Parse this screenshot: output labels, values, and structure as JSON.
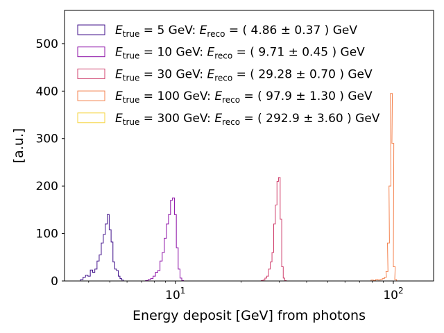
{
  "chart_data": {
    "type": "histogram-step",
    "xlabel": "Energy deposit [GeV] from photons",
    "ylabel": "[a.u.]",
    "x_scale": "log",
    "xlim": [
      3.1,
      153
    ],
    "ylim": [
      0,
      570
    ],
    "y_ticks": [
      0,
      100,
      200,
      300,
      400,
      500
    ],
    "x_ticks": [
      {
        "value": 10,
        "base": "10",
        "exp": "1"
      },
      {
        "value": 100,
        "base": "10",
        "exp": "2"
      }
    ],
    "grid": false,
    "legend_location": "upper-left",
    "series": [
      {
        "name": "E_true = 5 GeV: E_reco = ( 4.86 ± 0.37 ) GeV",
        "legend": {
          "sub1": "true",
          "mid": " = 5 GeV: ",
          "sub2": "reco",
          "tail": " = ( 4.86 ± 0.37 ) GeV"
        },
        "color": "#3f0f8a",
        "counts": [
          [
            3.72,
            3
          ],
          [
            3.82,
            8
          ],
          [
            3.92,
            12
          ],
          [
            4.02,
            10
          ],
          [
            4.12,
            23
          ],
          [
            4.22,
            18
          ],
          [
            4.32,
            25
          ],
          [
            4.42,
            42
          ],
          [
            4.52,
            55
          ],
          [
            4.62,
            80
          ],
          [
            4.72,
            98
          ],
          [
            4.82,
            120
          ],
          [
            4.92,
            140
          ],
          [
            5.02,
            108
          ],
          [
            5.12,
            82
          ],
          [
            5.22,
            40
          ],
          [
            5.32,
            25
          ],
          [
            5.42,
            22
          ],
          [
            5.52,
            10
          ],
          [
            5.62,
            5
          ],
          [
            5.72,
            2
          ]
        ]
      },
      {
        "name": "E_true = 10 GeV: E_reco = ( 9.71 ± 0.45 ) GeV",
        "legend": {
          "sub1": "true",
          "mid": " = 10 GeV: ",
          "sub2": "reco",
          "tail": " = ( 9.71 ± 0.45 ) GeV"
        },
        "color": "#8c0fa6",
        "counts": [
          [
            7.4,
            1
          ],
          [
            7.6,
            3
          ],
          [
            7.8,
            5
          ],
          [
            8.0,
            10
          ],
          [
            8.2,
            18
          ],
          [
            8.4,
            22
          ],
          [
            8.6,
            42
          ],
          [
            8.8,
            60
          ],
          [
            9.0,
            90
          ],
          [
            9.2,
            120
          ],
          [
            9.4,
            140
          ],
          [
            9.6,
            170
          ],
          [
            9.8,
            175
          ],
          [
            10.0,
            140
          ],
          [
            10.2,
            70
          ],
          [
            10.4,
            25
          ],
          [
            10.6,
            6
          ],
          [
            10.8,
            1
          ]
        ]
      },
      {
        "name": "E_true = 30 GeV: E_reco = ( 29.28 ± 0.70 ) GeV",
        "legend": {
          "sub1": "true",
          "mid": " = 30 GeV: ",
          "sub2": "reco",
          "tail": " = ( 29.28 ± 0.70 ) GeV"
        },
        "color": "#d0406d",
        "counts": [
          [
            25.0,
            1
          ],
          [
            25.5,
            2
          ],
          [
            26.0,
            6
          ],
          [
            26.5,
            10
          ],
          [
            27.0,
            25
          ],
          [
            27.5,
            40
          ],
          [
            28.0,
            60
          ],
          [
            28.5,
            120
          ],
          [
            29.0,
            160
          ],
          [
            29.5,
            210
          ],
          [
            30.0,
            218
          ],
          [
            30.5,
            130
          ],
          [
            31.0,
            30
          ],
          [
            31.5,
            6
          ],
          [
            32.0,
            1
          ]
        ]
      },
      {
        "name": "E_true = 100 GeV: E_reco = ( 97.9 ± 1.30 ) GeV",
        "legend": {
          "sub1": "true",
          "mid": " = 100 GeV: ",
          "sub2": "reco",
          "tail": " = ( 97.9 ± 1.30 ) GeV"
        },
        "color": "#f4824e",
        "counts": [
          [
            80.0,
            2
          ],
          [
            82.0,
            1
          ],
          [
            84.0,
            3
          ],
          [
            86.0,
            2
          ],
          [
            88.0,
            3
          ],
          [
            90.0,
            5
          ],
          [
            92.0,
            8
          ],
          [
            93.5,
            20
          ],
          [
            95.0,
            80
          ],
          [
            96.5,
            200
          ],
          [
            98.0,
            395
          ],
          [
            99.5,
            290
          ],
          [
            101.0,
            30
          ],
          [
            102.5,
            3
          ]
        ]
      },
      {
        "name": "E_true = 300 GeV: E_reco = ( 292.9 ± 3.60 ) GeV",
        "legend": {
          "sub1": "true",
          "mid": " = 300 GeV: ",
          "sub2": "reco",
          "tail": " = ( 292.9 ± 3.60 ) GeV"
        },
        "color": "#f6d33c",
        "counts": []
      }
    ]
  }
}
